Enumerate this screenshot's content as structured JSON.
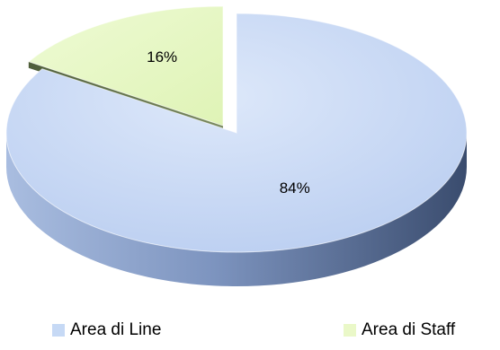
{
  "chart_data": {
    "type": "pie",
    "style": "3d-exploded",
    "title": "",
    "slices": [
      {
        "name": "Area di Line",
        "value": 84,
        "label": "84%",
        "color": "#c6d9f5"
      },
      {
        "name": "Area di Staff",
        "value": 16,
        "label": "16%",
        "color": "#eaf8c8"
      }
    ],
    "legend_position": "bottom"
  }
}
